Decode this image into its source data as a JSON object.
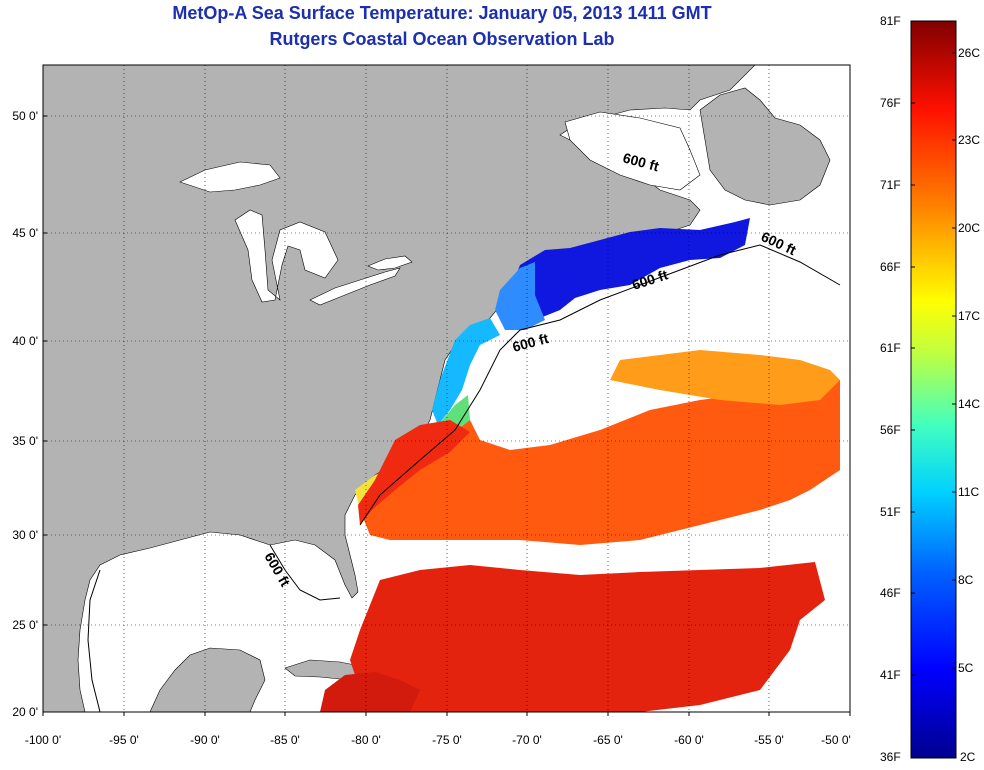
{
  "header": {
    "title": "MetOp-A Sea Surface Temperature:  January 05, 2013 1411 GMT",
    "subtitle": "Rutgers Coastal Ocean Observation Lab"
  },
  "axes": {
    "lat_labels": [
      "50 0'",
      "45 0'",
      "40 0'",
      "35 0'",
      "30 0'",
      "25 0'",
      "20 0'"
    ],
    "lon_labels": [
      "-100 0'",
      "-95 0'",
      "-90 0'",
      "-85 0'",
      "-80 0'",
      "-75 0'",
      "-70 0'",
      "-65 0'",
      "-60 0'",
      "-55 0'",
      "-50 0'"
    ]
  },
  "contour_label": "600 ft",
  "colorbar": {
    "fahrenheit_labels": [
      "81F",
      "76F",
      "71F",
      "66F",
      "61F",
      "56F",
      "51F",
      "46F",
      "41F",
      "36F"
    ],
    "celsius_labels": [
      "26C",
      "23C",
      "20C",
      "17C",
      "14C",
      "11C",
      "8C",
      "5C",
      "2C"
    ],
    "colors": [
      "#00008f",
      "#0000ff",
      "#0080ff",
      "#00ffff",
      "#80ff80",
      "#ffff00",
      "#ff8000",
      "#ff0000",
      "#800000"
    ]
  },
  "colors": {
    "title": "#1c2fb0",
    "land": "#b3b3b3",
    "no_data": "#ffffff"
  }
}
